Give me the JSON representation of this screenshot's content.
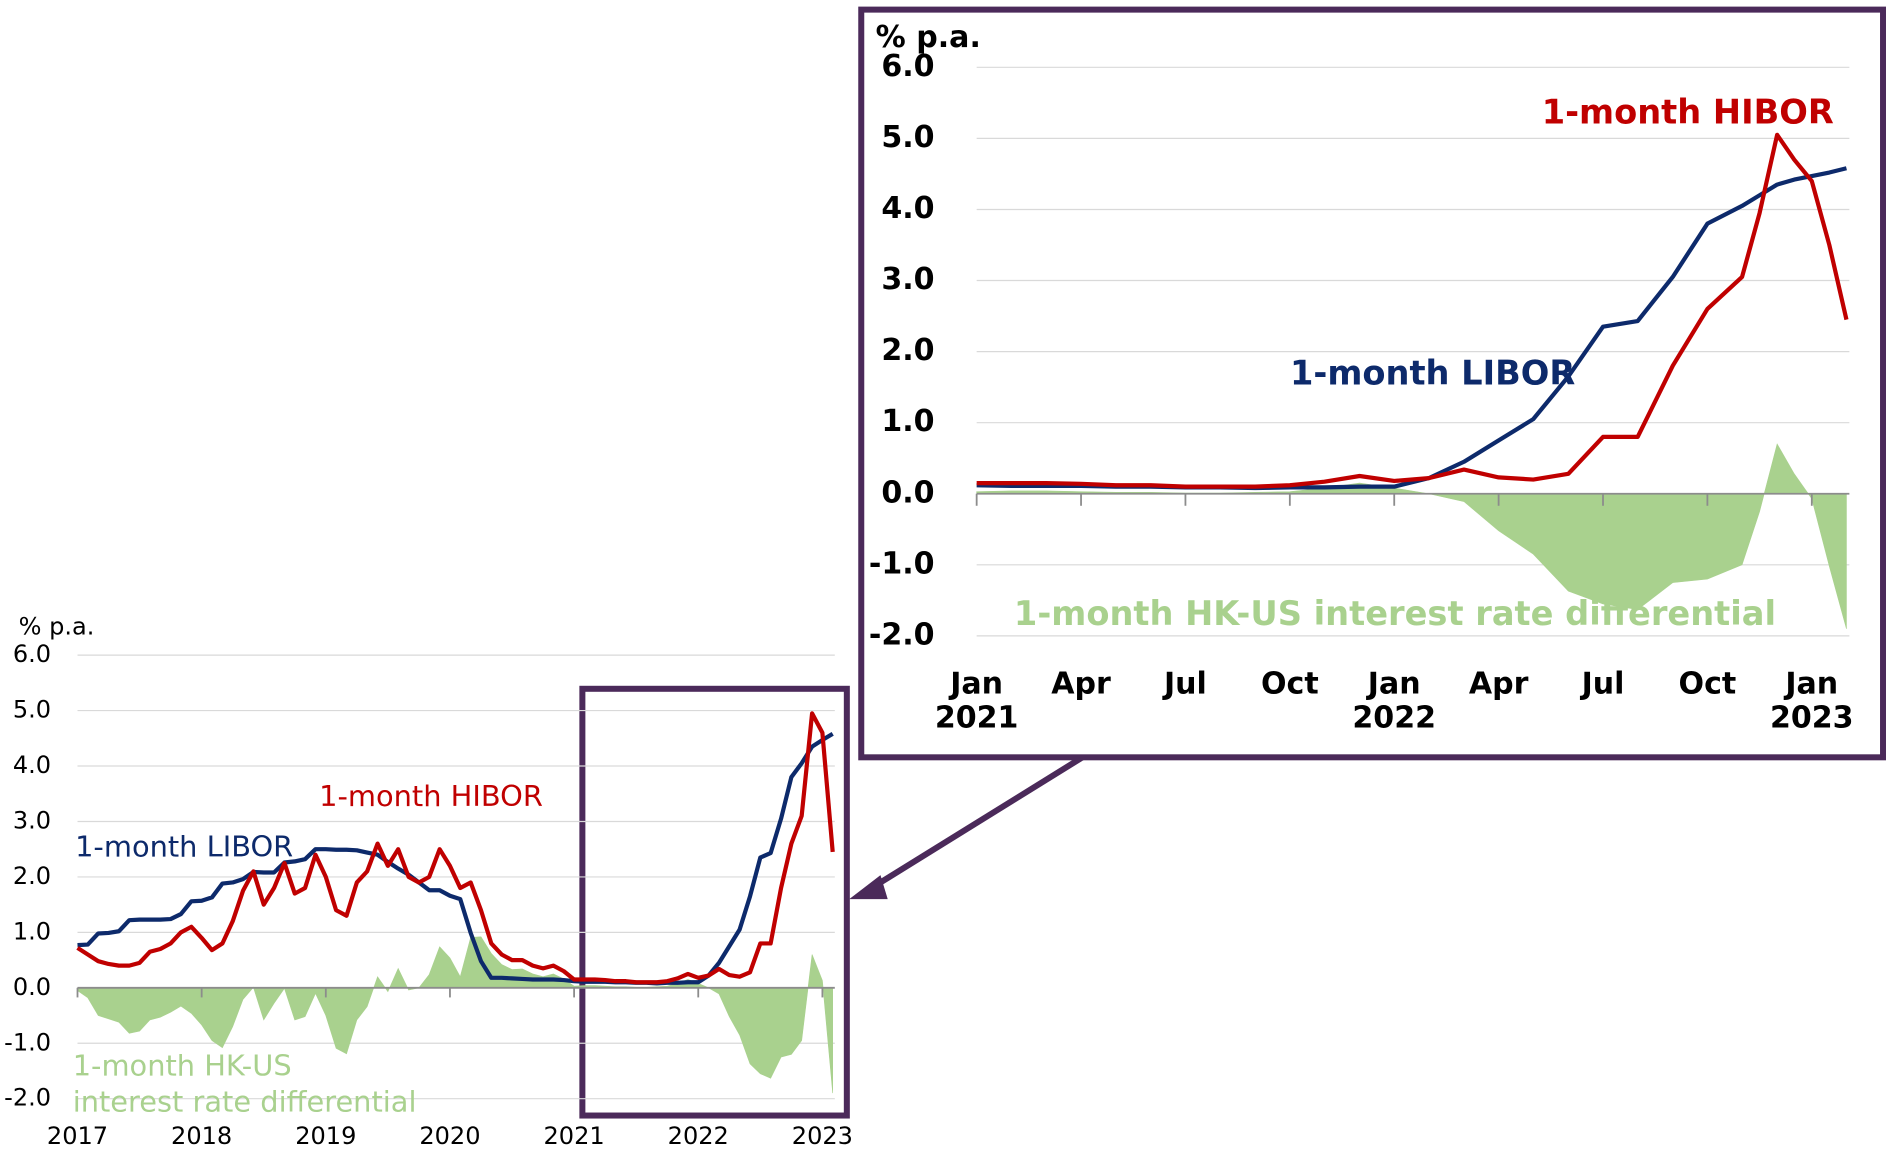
{
  "chart_data": [
    {
      "type": "line",
      "y_label": "% p.a.",
      "x": [
        2017.0,
        2017.083,
        2017.167,
        2017.25,
        2017.333,
        2017.417,
        2017.5,
        2017.583,
        2017.667,
        2017.75,
        2017.833,
        2017.917,
        2018.0,
        2018.083,
        2018.167,
        2018.25,
        2018.333,
        2018.417,
        2018.5,
        2018.583,
        2018.667,
        2018.75,
        2018.833,
        2018.917,
        2019.0,
        2019.083,
        2019.167,
        2019.25,
        2019.333,
        2019.417,
        2019.5,
        2019.583,
        2019.667,
        2019.75,
        2019.833,
        2019.917,
        2020.0,
        2020.083,
        2020.167,
        2020.25,
        2020.333,
        2020.417,
        2020.5,
        2020.583,
        2020.667,
        2020.75,
        2020.833,
        2020.917,
        2021.0,
        2021.083,
        2021.167,
        2021.25,
        2021.333,
        2021.417,
        2021.5,
        2021.583,
        2021.667,
        2021.75,
        2021.833,
        2021.917,
        2022.0,
        2022.083,
        2022.167,
        2022.25,
        2022.333,
        2022.417,
        2022.5,
        2022.583,
        2022.667,
        2022.75,
        2022.833,
        2022.917,
        2023.0,
        2023.083
      ],
      "xlim": [
        2017,
        2023.1
      ],
      "xticks": [
        2017,
        2018,
        2019,
        2020,
        2021,
        2022,
        2023
      ],
      "ylim": [
        -2,
        6
      ],
      "yticks": [
        {
          "value": 6,
          "label": "6.0"
        },
        {
          "value": 5,
          "label": "5.0"
        },
        {
          "value": 4,
          "label": "4.0"
        },
        {
          "value": 3,
          "label": "3.0"
        },
        {
          "value": 2,
          "label": "2.0"
        },
        {
          "value": 1,
          "label": "1.0"
        },
        {
          "value": 0,
          "label": "0.0"
        },
        {
          "value": -1,
          "label": "-1.0"
        },
        {
          "value": -2,
          "label": "-2.0"
        }
      ],
      "grid": true,
      "annotations": [
        "1-month HK-US",
        "interest rate differential"
      ],
      "series": [
        {
          "kind": "area",
          "color": "#a9d18e",
          "values": [
            -0.05,
            -0.18,
            -0.5,
            -0.56,
            -0.62,
            -0.82,
            -0.78,
            -0.58,
            -0.53,
            -0.44,
            -0.33,
            -0.46,
            -0.67,
            -0.95,
            -1.08,
            -0.7,
            -0.21,
            0.01,
            -0.58,
            -0.28,
            -0.01,
            -0.58,
            -0.52,
            -0.1,
            -0.5,
            -1.09,
            -1.19,
            -0.58,
            -0.34,
            0.2,
            -0.07,
            0.35,
            -0.04,
            0.0,
            0.24,
            0.74,
            0.54,
            0.2,
            0.91,
            0.92,
            0.62,
            0.42,
            0.33,
            0.34,
            0.25,
            0.2,
            0.25,
            0.16,
            0.03,
            0.04,
            0.04,
            0.03,
            0.02,
            0.02,
            0.01,
            0.01,
            0.02,
            0.03,
            0.08,
            0.15,
            0.08,
            0.0,
            -0.11,
            -0.52,
            -0.85,
            -1.37,
            -1.55,
            -1.63,
            -1.25,
            -1.2,
            -0.95,
            0.6,
            0.13,
            -1.9
          ]
        },
        {
          "name": "1-month LIBOR",
          "kind": "line",
          "color": "#0d2a6b",
          "values": [
            0.77,
            0.78,
            0.98,
            0.99,
            1.02,
            1.22,
            1.23,
            1.23,
            1.23,
            1.24,
            1.33,
            1.56,
            1.57,
            1.63,
            1.88,
            1.9,
            1.96,
            2.09,
            2.08,
            2.08,
            2.26,
            2.28,
            2.32,
            2.5,
            2.5,
            2.49,
            2.49,
            2.48,
            2.44,
            2.4,
            2.27,
            2.15,
            2.04,
            1.9,
            1.76,
            1.76,
            1.66,
            1.6,
            0.99,
            0.48,
            0.18,
            0.18,
            0.17,
            0.16,
            0.15,
            0.15,
            0.15,
            0.14,
            0.12,
            0.11,
            0.11,
            0.11,
            0.1,
            0.1,
            0.09,
            0.09,
            0.08,
            0.09,
            0.09,
            0.1,
            0.1,
            0.22,
            0.45,
            0.75,
            1.05,
            1.65,
            2.35,
            2.43,
            3.05,
            3.8,
            4.05,
            4.35,
            4.47,
            4.58
          ]
        },
        {
          "name": "1-month HIBOR",
          "kind": "line",
          "color": "#c00000",
          "values": [
            0.72,
            0.6,
            0.48,
            0.43,
            0.4,
            0.4,
            0.45,
            0.65,
            0.7,
            0.8,
            1.0,
            1.1,
            0.9,
            0.68,
            0.8,
            1.2,
            1.75,
            2.1,
            1.5,
            1.8,
            2.25,
            1.7,
            1.8,
            2.4,
            2.0,
            1.4,
            1.3,
            1.9,
            2.1,
            2.6,
            2.2,
            2.5,
            2.0,
            1.9,
            2.0,
            2.5,
            2.2,
            1.8,
            1.9,
            1.4,
            0.8,
            0.6,
            0.5,
            0.5,
            0.4,
            0.35,
            0.4,
            0.3,
            0.15,
            0.15,
            0.15,
            0.14,
            0.12,
            0.12,
            0.1,
            0.1,
            0.1,
            0.12,
            0.17,
            0.25,
            0.18,
            0.22,
            0.34,
            0.23,
            0.2,
            0.28,
            0.8,
            0.8,
            1.8,
            2.6,
            3.1,
            4.95,
            4.6,
            2.45
          ]
        }
      ]
    },
    {
      "type": "line",
      "y_label": "% p.a.",
      "x": [
        2021.0,
        2021.083,
        2021.167,
        2021.25,
        2021.333,
        2021.417,
        2021.5,
        2021.583,
        2021.667,
        2021.75,
        2021.833,
        2021.917,
        2022.0,
        2022.083,
        2022.167,
        2022.25,
        2022.333,
        2022.417,
        2022.5,
        2022.583,
        2022.667,
        2022.75,
        2022.833,
        2022.875,
        2022.917,
        2022.958,
        2023.0,
        2023.042,
        2023.083
      ],
      "xlim": [
        2021,
        2023.09
      ],
      "xticks": [
        {
          "value": 2021,
          "label": "Jan"
        },
        {
          "value": 2021.25,
          "label": "Apr"
        },
        {
          "value": 2021.5,
          "label": "Jul"
        },
        {
          "value": 2021.75,
          "label": "Oct"
        },
        {
          "value": 2022,
          "label": "Jan"
        },
        {
          "value": 2022.25,
          "label": "Apr"
        },
        {
          "value": 2022.5,
          "label": "Jul"
        },
        {
          "value": 2022.75,
          "label": "Oct"
        },
        {
          "value": 2023,
          "label": "Jan"
        }
      ],
      "year_ticks": [
        2021,
        2022,
        2023
      ],
      "ylim": [
        -2,
        6
      ],
      "yticks": [
        {
          "value": 6,
          "label": "6.0"
        },
        {
          "value": 5,
          "label": "5.0"
        },
        {
          "value": 4,
          "label": "4.0"
        },
        {
          "value": 3,
          "label": "3.0"
        },
        {
          "value": 2,
          "label": "2.0"
        },
        {
          "value": 1,
          "label": "1.0"
        },
        {
          "value": 0,
          "label": "0.0"
        },
        {
          "value": -1,
          "label": "-1.0"
        },
        {
          "value": -2,
          "label": "-2.0"
        }
      ],
      "grid": true,
      "series": [
        {
          "name": "1-month HK-US interest rate differential",
          "kind": "area",
          "color": "#a9d18e",
          "values": [
            0.03,
            0.04,
            0.04,
            0.03,
            0.02,
            0.02,
            0.01,
            0.01,
            0.02,
            0.03,
            0.08,
            0.15,
            0.08,
            0.0,
            -0.11,
            -0.52,
            -0.85,
            -1.37,
            -1.55,
            -1.63,
            -1.25,
            -1.2,
            -1.0,
            -0.25,
            0.7,
            0.28,
            -0.07,
            -1.02,
            -1.9
          ]
        },
        {
          "name": "1-month LIBOR",
          "kind": "line",
          "color": "#0d2a6b",
          "values": [
            0.12,
            0.11,
            0.11,
            0.11,
            0.1,
            0.1,
            0.09,
            0.09,
            0.08,
            0.09,
            0.09,
            0.1,
            0.1,
            0.22,
            0.45,
            0.75,
            1.05,
            1.65,
            2.35,
            2.43,
            3.05,
            3.8,
            4.05,
            4.2,
            4.35,
            4.42,
            4.47,
            4.52,
            4.58
          ]
        },
        {
          "name": "1-month HIBOR",
          "kind": "line",
          "color": "#c00000",
          "values": [
            0.15,
            0.15,
            0.15,
            0.14,
            0.12,
            0.12,
            0.1,
            0.1,
            0.1,
            0.12,
            0.17,
            0.25,
            0.18,
            0.22,
            0.34,
            0.23,
            0.2,
            0.28,
            0.8,
            0.8,
            1.8,
            2.6,
            3.05,
            3.95,
            5.05,
            4.7,
            4.4,
            3.5,
            2.45
          ]
        }
      ]
    }
  ]
}
